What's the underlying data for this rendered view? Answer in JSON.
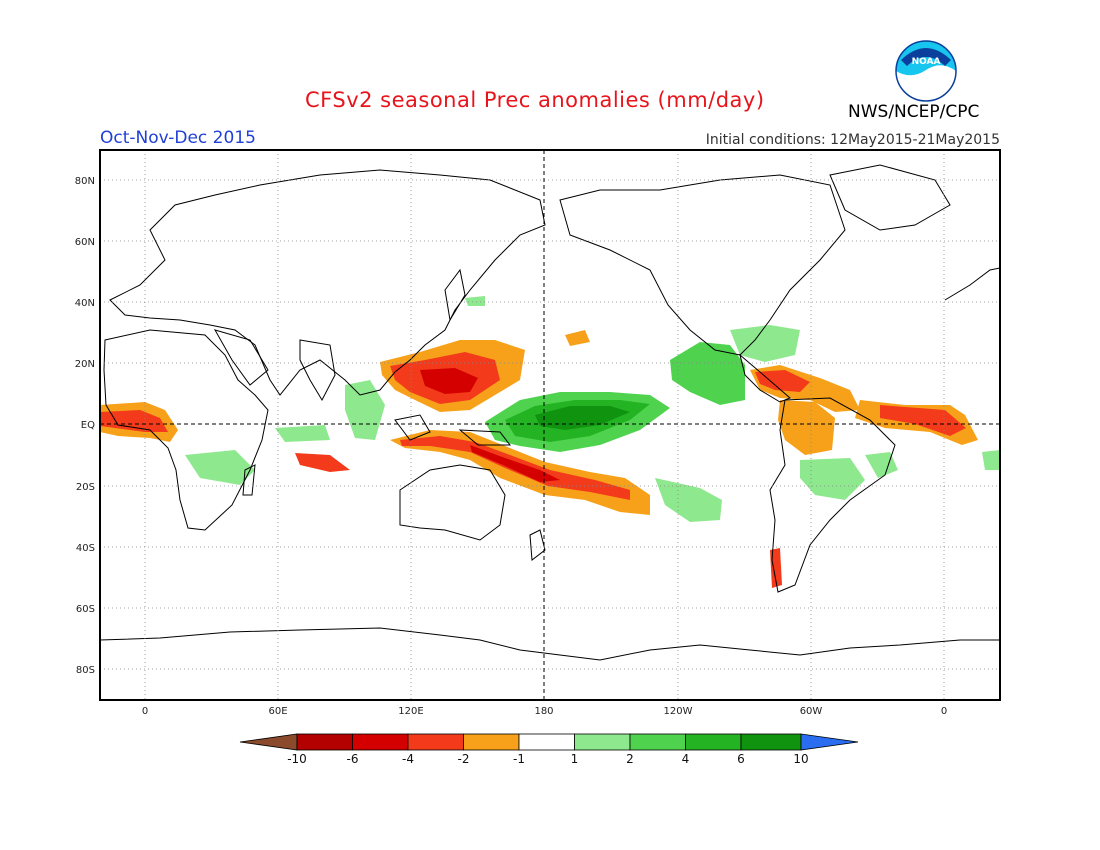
{
  "header": {
    "title": "CFSv2 seasonal Prec anomalies (mm/day)",
    "period": "Oct-Nov-Dec 2015",
    "initial_conditions": "Initial conditions: 12May2015-21May2015",
    "agency": "NWS/NCEP/CPC",
    "logo_text": "NOAA"
  },
  "map": {
    "lat_labels": [
      "80N",
      "60N",
      "40N",
      "20N",
      "EQ",
      "20S",
      "40S",
      "60S",
      "80S"
    ],
    "lon_labels": [
      "0",
      "60E",
      "120E",
      "180",
      "120W",
      "60W",
      "0"
    ]
  },
  "colorbar": {
    "levels": [
      "-10",
      "-6",
      "-4",
      "-2",
      "-1",
      "1",
      "2",
      "4",
      "6",
      "10"
    ],
    "colors": [
      "#8b4a2b",
      "#b30000",
      "#d40000",
      "#f33b1b",
      "#f7a11a",
      "#ffffff",
      "#8ee88e",
      "#4fd34f",
      "#23b323",
      "#109410",
      "#2a6df0"
    ]
  }
}
